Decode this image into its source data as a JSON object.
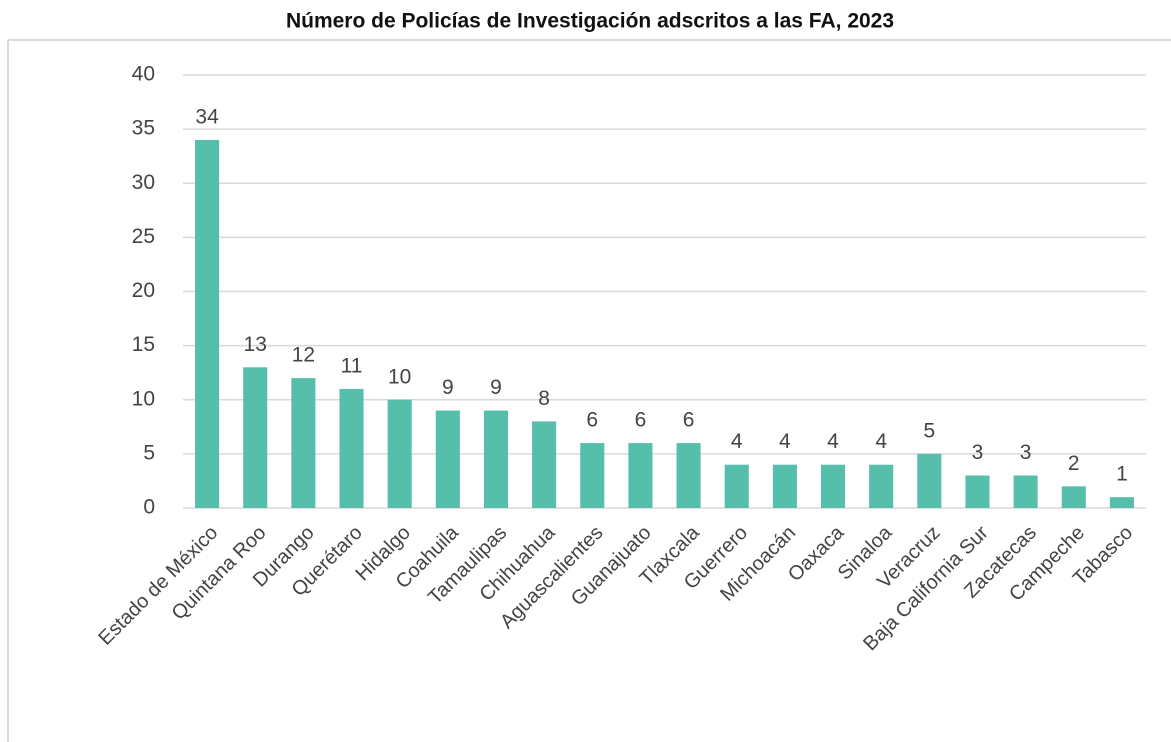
{
  "chart_data": {
    "type": "bar",
    "title": "Número de Policías de Investigación adscritos a las FA, 2023",
    "categories": [
      "Estado de México",
      "Quintana Roo",
      "Durango",
      "Querétaro",
      "Hidalgo",
      "Coahuila",
      "Tamaulipas",
      "Chihuahua",
      "Aguascalientes",
      "Guanajuato",
      "Tlaxcala",
      "Guerrero",
      "Michoacán",
      "Oaxaca",
      "Sinaloa",
      "Veracruz",
      "Baja California Sur",
      "Zacatecas",
      "Campeche",
      "Tabasco"
    ],
    "values": [
      34,
      13,
      12,
      11,
      10,
      9,
      9,
      8,
      6,
      6,
      6,
      4,
      4,
      4,
      4,
      5,
      3,
      3,
      2,
      1
    ],
    "color": "#55bfab",
    "ylim": [
      0,
      40
    ],
    "yticks": [
      0,
      5,
      10,
      15,
      20,
      25,
      30,
      35,
      40
    ],
    "grid": true
  }
}
